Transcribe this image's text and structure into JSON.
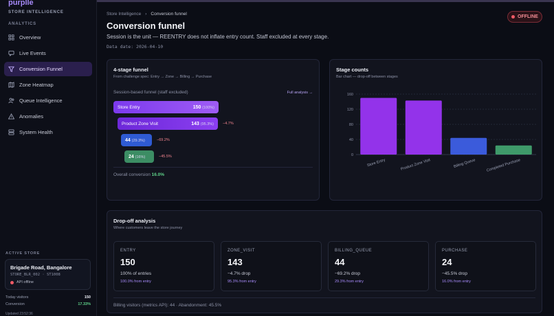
{
  "brand": {
    "name": "purplle",
    "subtitle": "STORE INTELLIGENCE"
  },
  "sidebar": {
    "section_label": "ANALYTICS",
    "items": [
      {
        "label": "Overview",
        "icon": "grid-icon"
      },
      {
        "label": "Live Events",
        "icon": "message-icon"
      },
      {
        "label": "Conversion Funnel",
        "icon": "funnel-icon",
        "active": true
      },
      {
        "label": "Zone Heatmap",
        "icon": "map-icon"
      },
      {
        "label": "Queue Intelligence",
        "icon": "users-icon"
      },
      {
        "label": "Anomalies",
        "icon": "warning-icon"
      },
      {
        "label": "System Health",
        "icon": "server-icon"
      }
    ],
    "active_store_label": "ACTIVE STORE",
    "store": {
      "name": "Brigade Road, Bangalore",
      "code": "STORE_BLR_002 · ST1008",
      "status": "API offline"
    },
    "today_visitors_label": "Today visitors",
    "today_visitors": "150",
    "conversion_label": "Conversion",
    "conversion": "17.33%",
    "updated": "Updated 23:52:36"
  },
  "header": {
    "breadcrumb": [
      "Store Intelligence",
      "Conversion funnel"
    ],
    "badge": "OFFLINE",
    "title": "Conversion funnel",
    "subtitle": "Session is the unit — REENTRY does not inflate entry count. Staff excluded at every stage.",
    "data_date": "Data date: 2026-04-10"
  },
  "funnel_panel": {
    "title": "4-stage funnel",
    "subtitle": "From challenge spec: Entry → Zone → Billing → Purchase",
    "head": "Session-based funnel (staff excluded)",
    "link": "Full analysis →",
    "stages": [
      {
        "label": "Store Entry",
        "count": "150",
        "pct": "(100%)",
        "drop": ""
      },
      {
        "label": "Product Zone Visit",
        "count": "143",
        "pct": "(95.3%)",
        "drop": "−4.7%"
      },
      {
        "label": "",
        "count": "44",
        "pct": "(29.3%)",
        "drop": "−69.2%"
      },
      {
        "label": "",
        "count": "24",
        "pct": "(16%)",
        "drop": "−45.5%"
      }
    ],
    "overall_label": "Overall conversion",
    "overall_value": "16.0%"
  },
  "counts_panel": {
    "title": "Stage counts",
    "subtitle": "Bar chart — drop-off between stages"
  },
  "chart_data": {
    "type": "bar",
    "categories": [
      "Store Entry",
      "Product Zone Visit",
      "Billing Queue",
      "Completed Purchase"
    ],
    "values": [
      150,
      143,
      44,
      24
    ],
    "colors": [
      "#9333ea",
      "#9333ea",
      "#3b5bdb",
      "#3f9a6a"
    ],
    "title": "Stage counts",
    "ylim": [
      0,
      160
    ],
    "yticks": [
      0,
      40,
      80,
      120,
      160
    ],
    "grid": true
  },
  "dropoff_panel": {
    "title": "Drop-off analysis",
    "subtitle": "Where customers leave the store journey",
    "cards": [
      {
        "label": "ENTRY",
        "value": "150",
        "desc": "100% of entries",
        "note": "100.0% from entry"
      },
      {
        "label": "ZONE_VISIT",
        "value": "143",
        "desc": "−4.7% drop",
        "note": "95.3% from entry"
      },
      {
        "label": "BILLING_QUEUE",
        "value": "44",
        "desc": "−69.2% drop",
        "note": "29.3% from entry"
      },
      {
        "label": "PURCHASE",
        "value": "24",
        "desc": "−45.5% drop",
        "note": "16.0% from entry"
      }
    ],
    "footer": "Billing visitors (metrics API): 44 · Abandonment: 45.5%"
  }
}
